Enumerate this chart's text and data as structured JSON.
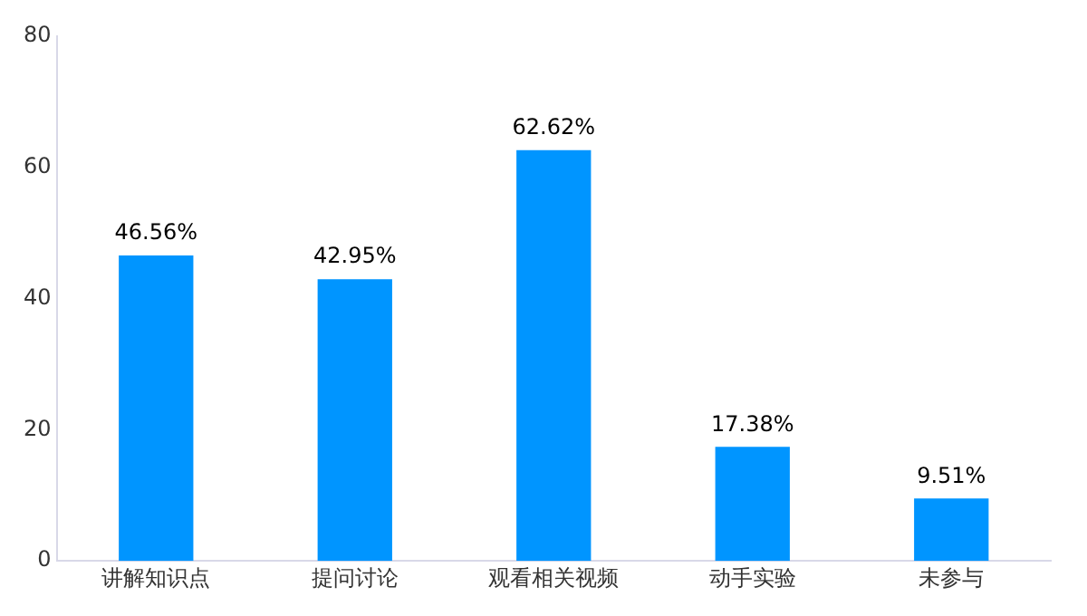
{
  "chart_data": {
    "type": "bar",
    "categories": [
      "讲解知识点",
      "提问讨论",
      "观看相关视频",
      "动手实验",
      "未参与"
    ],
    "values": [
      46.56,
      42.95,
      62.62,
      17.38,
      9.51
    ],
    "value_labels": [
      "46.56%",
      "42.95%",
      "62.62%",
      "17.38%",
      "9.51%"
    ],
    "color": "#0095ff",
    "ylim": [
      0,
      80
    ],
    "yticks": [
      0,
      20,
      40,
      60,
      80
    ],
    "grid": false,
    "legend": false
  }
}
